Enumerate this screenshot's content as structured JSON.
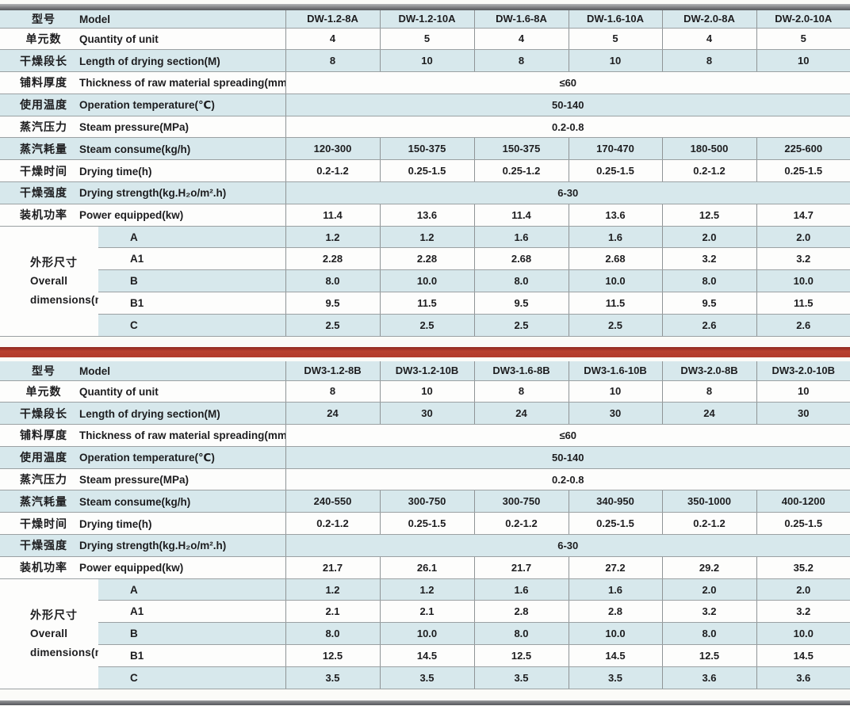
{
  "palette": {
    "row_blue": "#d7e8ec",
    "row_white": "#fdfdfc",
    "grid_line": "#9ba1a3",
    "column_line": "#8f9496",
    "red_divider": "#b23a2b",
    "dark_border": "#56575a",
    "text": "#1d1d1f"
  },
  "sections": [
    {
      "rows": [
        {
          "cn": "型号",
          "en": "Model",
          "values": [
            "DW-1.2-8A",
            "DW-1.2-10A",
            "DW-1.6-8A",
            "DW-1.6-10A",
            "DW-2.0-8A",
            "DW-2.0-10A"
          ]
        },
        {
          "cn": "单元数",
          "en": "Quantity of unit",
          "values": [
            "4",
            "5",
            "4",
            "5",
            "4",
            "5"
          ]
        },
        {
          "cn": "干燥段长",
          "en": "Length of drying section(M)",
          "values": [
            "8",
            "10",
            "8",
            "10",
            "8",
            "10"
          ]
        },
        {
          "cn": "铺料厚度",
          "en": "Thickness of raw material spreading(mm)",
          "span": "≤60"
        },
        {
          "cn": "使用温度",
          "en": "Operation temperature(℃)",
          "span": "50-140"
        },
        {
          "cn": "蒸汽压力",
          "en": "Steam pressure(MPa)",
          "span": "0.2-0.8"
        },
        {
          "cn": "蒸汽耗量",
          "en": "Steam consume(kg/h)",
          "values": [
            "120-300",
            "150-375",
            "150-375",
            "170-470",
            "180-500",
            "225-600"
          ]
        },
        {
          "cn": "干燥时间",
          "en": "Drying time(h)",
          "values": [
            "0.2-1.2",
            "0.25-1.5",
            "0.25-1.2",
            "0.25-1.5",
            "0.2-1.2",
            "0.25-1.5"
          ]
        },
        {
          "cn": "干燥强度",
          "en": "Drying strength(kg.H₂o/m².h)",
          "span": "6-30"
        },
        {
          "cn": "装机功率",
          "en": "Power equipped(kw)",
          "values": [
            "11.4",
            "13.6",
            "11.4",
            "13.6",
            "12.5",
            "14.7"
          ]
        }
      ],
      "dims": {
        "cn": "外形尺寸",
        "en1": "Overall",
        "en2": "dimensions(m)",
        "rows": [
          {
            "key": "A",
            "values": [
              "1.2",
              "1.2",
              "1.6",
              "1.6",
              "2.0",
              "2.0"
            ]
          },
          {
            "key": "A1",
            "values": [
              "2.28",
              "2.28",
              "2.68",
              "2.68",
              "3.2",
              "3.2"
            ]
          },
          {
            "key": "B",
            "values": [
              "8.0",
              "10.0",
              "8.0",
              "10.0",
              "8.0",
              "10.0"
            ]
          },
          {
            "key": "B1",
            "values": [
              "9.5",
              "11.5",
              "9.5",
              "11.5",
              "9.5",
              "11.5"
            ]
          },
          {
            "key": "C",
            "values": [
              "2.5",
              "2.5",
              "2.5",
              "2.5",
              "2.6",
              "2.6"
            ]
          }
        ]
      }
    },
    {
      "rows": [
        {
          "cn": "型号",
          "en": "Model",
          "values": [
            "DW3-1.2-8B",
            "DW3-1.2-10B",
            "DW3-1.6-8B",
            "DW3-1.6-10B",
            "DW3-2.0-8B",
            "DW3-2.0-10B"
          ]
        },
        {
          "cn": "单元数",
          "en": "Quantity of unit",
          "values": [
            "8",
            "10",
            "8",
            "10",
            "8",
            "10"
          ]
        },
        {
          "cn": "干燥段长",
          "en": "Length of drying section(M)",
          "values": [
            "24",
            "30",
            "24",
            "30",
            "24",
            "30"
          ]
        },
        {
          "cn": "铺料厚度",
          "en": "Thickness of raw material spreading(mm)",
          "span": "≤60"
        },
        {
          "cn": "使用温度",
          "en": "Operation temperature(℃)",
          "span": "50-140"
        },
        {
          "cn": "蒸汽压力",
          "en": "Steam pressure(MPa)",
          "span": "0.2-0.8"
        },
        {
          "cn": "蒸汽耗量",
          "en": "Steam consume(kg/h)",
          "values": [
            "240-550",
            "300-750",
            "300-750",
            "340-950",
            "350-1000",
            "400-1200"
          ]
        },
        {
          "cn": "干燥时间",
          "en": "Drying time(h)",
          "values": [
            "0.2-1.2",
            "0.25-1.5",
            "0.2-1.2",
            "0.25-1.5",
            "0.2-1.2",
            "0.25-1.5"
          ]
        },
        {
          "cn": "干燥强度",
          "en": "Drying strength(kg.H₂o/m².h)",
          "span": "6-30"
        },
        {
          "cn": "装机功率",
          "en": "Power equipped(kw)",
          "values": [
            "21.7",
            "26.1",
            "21.7",
            "27.2",
            "29.2",
            "35.2"
          ]
        }
      ],
      "dims": {
        "cn": "外形尺寸",
        "en1": "Overall",
        "en2": "dimensions(m)",
        "rows": [
          {
            "key": "A",
            "values": [
              "1.2",
              "1.2",
              "1.6",
              "1.6",
              "2.0",
              "2.0"
            ]
          },
          {
            "key": "A1",
            "values": [
              "2.1",
              "2.1",
              "2.8",
              "2.8",
              "3.2",
              "3.2"
            ]
          },
          {
            "key": "B",
            "values": [
              "8.0",
              "10.0",
              "8.0",
              "10.0",
              "8.0",
              "10.0"
            ]
          },
          {
            "key": "B1",
            "values": [
              "12.5",
              "14.5",
              "12.5",
              "14.5",
              "12.5",
              "14.5"
            ]
          },
          {
            "key": "C",
            "values": [
              "3.5",
              "3.5",
              "3.5",
              "3.5",
              "3.6",
              "3.6"
            ]
          }
        ]
      }
    }
  ]
}
